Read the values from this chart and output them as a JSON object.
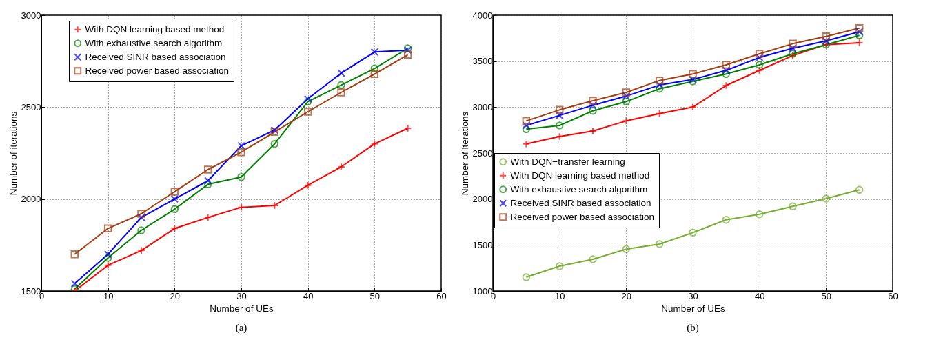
{
  "chart_data": [
    {
      "type": "line",
      "xlabel": "Number of UEs",
      "ylabel": "Number of iterations",
      "annotations": [
        "(a)"
      ],
      "x": [
        5,
        10,
        15,
        20,
        25,
        30,
        35,
        40,
        45,
        50,
        55
      ],
      "xlim": [
        0,
        60
      ],
      "xticks": [
        0,
        10,
        20,
        30,
        40,
        50,
        60
      ],
      "ylim": [
        1500,
        3000
      ],
      "yticks": [
        1500,
        2000,
        2500,
        3000
      ],
      "grid": true,
      "legend": "top left",
      "series": [
        {
          "name": "With DQN learning based method",
          "color": "#ff0000",
          "marker": "cross",
          "values": [
            1500,
            1640,
            1720,
            1840,
            1900,
            1955,
            1965,
            2075,
            2175,
            2300,
            2385
          ]
        },
        {
          "name": "With exhaustive search algorithm",
          "color": "#008000",
          "marker": "circle",
          "values": [
            1510,
            1680,
            1830,
            1945,
            2080,
            2120,
            2300,
            2530,
            2620,
            2710,
            2820
          ]
        },
        {
          "name": "Received SINR based association",
          "color": "#0000ff",
          "marker": "x",
          "values": [
            1540,
            1700,
            1900,
            2000,
            2100,
            2290,
            2375,
            2545,
            2685,
            2800,
            2810
          ]
        },
        {
          "name": "Received power based association",
          "color": "#a33c10",
          "marker": "square",
          "values": [
            1700,
            1840,
            1920,
            2040,
            2160,
            2255,
            2365,
            2475,
            2580,
            2680,
            2785
          ]
        }
      ]
    },
    {
      "type": "line",
      "xlabel": "Number of UEs",
      "ylabel": "Number of iterations",
      "annotations": [
        "(b)"
      ],
      "x": [
        5,
        10,
        15,
        20,
        25,
        30,
        35,
        40,
        45,
        50,
        55
      ],
      "xlim": [
        0,
        60
      ],
      "xticks": [
        0,
        10,
        20,
        30,
        40,
        50,
        60
      ],
      "ylim": [
        1000,
        4000
      ],
      "yticks": [
        1000,
        1500,
        2000,
        2500,
        3000,
        3500,
        4000
      ],
      "grid": true,
      "legend": "left",
      "series": [
        {
          "name": "With DQN−transfer learning",
          "color": "#77ac30",
          "marker": "circle",
          "values": [
            1150,
            1270,
            1345,
            1455,
            1510,
            1635,
            1775,
            1835,
            1920,
            2005,
            2100
          ]
        },
        {
          "name": "With DQN learning based method",
          "color": "#ff0000",
          "marker": "cross",
          "values": [
            2600,
            2680,
            2740,
            2850,
            2930,
            3000,
            3235,
            3400,
            3560,
            3680,
            3700
          ]
        },
        {
          "name": "With exhaustive search algorithm",
          "color": "#008000",
          "marker": "circle",
          "values": [
            2760,
            2800,
            2960,
            3060,
            3200,
            3280,
            3360,
            3460,
            3580,
            3680,
            3780
          ]
        },
        {
          "name": "Received SINR based association",
          "color": "#0000ff",
          "marker": "x",
          "values": [
            2800,
            2910,
            3020,
            3120,
            3240,
            3300,
            3400,
            3540,
            3640,
            3720,
            3820
          ]
        },
        {
          "name": "Received power based association",
          "color": "#a33c10",
          "marker": "square",
          "values": [
            2850,
            2970,
            3070,
            3160,
            3290,
            3360,
            3460,
            3580,
            3690,
            3770,
            3860
          ]
        }
      ]
    }
  ]
}
